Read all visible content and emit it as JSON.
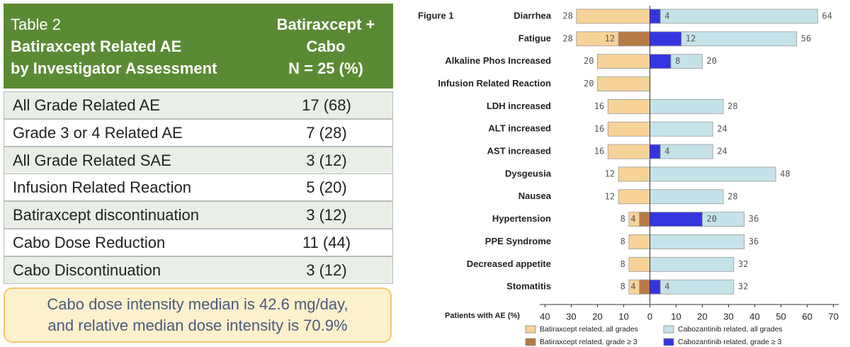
{
  "header": {
    "title_lines": [
      "Table 2",
      "Batiraxcept Related AE",
      "by Investigator Assessment"
    ],
    "column_lines": [
      "Batiraxcept +",
      "Cabo",
      "N = 25 (%)"
    ]
  },
  "table": {
    "rows": [
      [
        "All Grade Related AE",
        "17 (68)"
      ],
      [
        "Grade 3 or 4 Related AE",
        "7 (28)"
      ],
      [
        "All Grade Related SAE",
        "3 (12)"
      ],
      [
        "Infusion Related Reaction",
        "5 (20)"
      ],
      [
        "Batiraxcept discontinuation",
        "3 (12)"
      ],
      [
        "Cabo Dose Reduction",
        "11 (44)"
      ],
      [
        "Cabo Discontinuation",
        "3 (12)"
      ]
    ]
  },
  "note": {
    "lines": [
      "Cabo dose intensity median is 42.6 mg/day,",
      "and relative median dose intensity is 70.9%"
    ]
  },
  "chart_data": {
    "type": "bar",
    "title": "Figure 1",
    "xlabel": "Patients with AE (%)",
    "categories": [
      "Diarrhea",
      "Fatigue",
      "Alkaline Phos Increased",
      "Infusion Related Reaction",
      "LDH increased",
      "ALT increased",
      "AST increased",
      "Dysgeusia",
      "Nausea",
      "Hypertension",
      "PPE Syndrome",
      "Decreased appetite",
      "Stomatitis"
    ],
    "series": [
      {
        "name": "Batiraxcept related, all grades",
        "color": "#f8d398",
        "values": [
          -28,
          -28,
          -20,
          -20,
          -16,
          -16,
          -16,
          -12,
          -12,
          -8,
          -8,
          -8,
          -8
        ],
        "value_labels": [
          "28",
          "28",
          "20",
          "20",
          "16",
          "16",
          "16",
          "12",
          "12",
          "8",
          "8",
          "8",
          "8"
        ]
      },
      {
        "name": "Cabozantinib related, all grades",
        "color": "#c6e2e9",
        "values": [
          64,
          56,
          20,
          null,
          28,
          24,
          24,
          48,
          28,
          36,
          36,
          32,
          32
        ]
      },
      {
        "name": "Batiraxcept related, grade ≥ 3",
        "color": "#b87a45",
        "values": [
          null,
          -12,
          null,
          null,
          null,
          null,
          null,
          null,
          null,
          -4,
          null,
          null,
          -4
        ],
        "value_labels": [
          null,
          "12",
          null,
          null,
          null,
          null,
          null,
          null,
          null,
          "4",
          null,
          null,
          "4"
        ]
      },
      {
        "name": "Cabozantinib related, grade ≥ 3",
        "color": "#3535e0",
        "values": [
          4,
          12,
          8,
          null,
          null,
          null,
          4,
          null,
          null,
          20,
          null,
          null,
          4
        ]
      }
    ],
    "xlim": [
      -42,
      72
    ],
    "xticks": [
      {
        "value": -40,
        "label": "40"
      },
      {
        "value": -30,
        "label": "30"
      },
      {
        "value": -20,
        "label": "20"
      },
      {
        "value": -10,
        "label": "10"
      },
      0,
      10,
      20,
      30,
      40,
      50,
      60,
      70
    ]
  }
}
